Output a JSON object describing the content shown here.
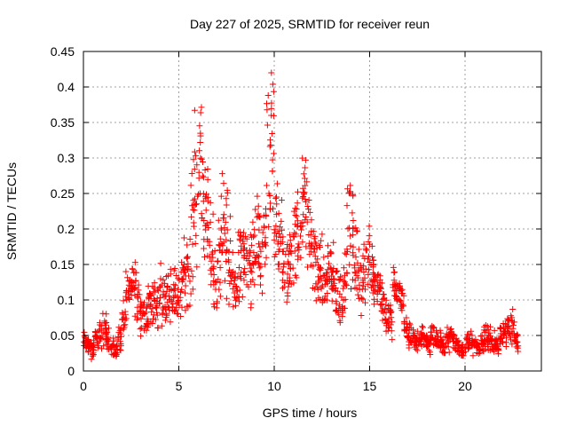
{
  "chart_data": {
    "type": "scatter",
    "title": "Day 227 of 2025, SRMTID for receiver reun",
    "xlabel": "GPS time / hours",
    "ylabel": "SRMTID / TECUs",
    "xlim": [
      0,
      24
    ],
    "ylim": [
      0,
      0.45
    ],
    "grid": true,
    "x_ticks": [
      0,
      5,
      10,
      15,
      20
    ],
    "x_tick_labels": [
      "0",
      "5",
      "10",
      "15",
      "20"
    ],
    "y_ticks": [
      0,
      0.05,
      0.1,
      0.15,
      0.2,
      0.25,
      0.3,
      0.35,
      0.4,
      0.45
    ],
    "y_tick_labels": [
      "0",
      "0.05",
      "0.1",
      "0.15",
      "0.2",
      "0.25",
      "0.3",
      "0.35",
      "0.4",
      "0.45"
    ],
    "series": [
      {
        "name": "SRMTID",
        "marker": "+",
        "color": "#ff0000",
        "x": [
          0.1,
          0.3,
          0.5,
          0.7,
          0.9,
          1.1,
          1.3,
          1.5,
          1.7,
          1.9,
          2.1,
          2.3,
          2.5,
          2.7,
          2.9,
          3.1,
          3.3,
          3.5,
          3.7,
          3.9,
          4.1,
          4.3,
          4.5,
          4.7,
          4.9,
          5.1,
          5.3,
          5.5,
          5.7,
          5.9,
          6.1,
          6.3,
          6.5,
          6.7,
          6.9,
          7.1,
          7.3,
          7.5,
          7.7,
          7.9,
          8.1,
          8.3,
          8.5,
          8.7,
          8.9,
          9.1,
          9.3,
          9.5,
          9.7,
          9.9,
          10.1,
          10.3,
          10.5,
          10.7,
          10.9,
          11.1,
          11.3,
          11.5,
          11.7,
          11.9,
          12.1,
          12.3,
          12.5,
          12.7,
          12.9,
          13.1,
          13.3,
          13.5,
          13.7,
          13.9,
          14.1,
          14.3,
          14.5,
          14.7,
          14.9,
          15.1,
          15.3,
          15.5,
          15.7,
          15.9,
          16.1,
          16.3,
          16.5,
          16.7,
          16.9,
          17.1,
          17.3,
          17.5,
          17.7,
          17.9,
          18.1,
          18.3,
          18.5,
          18.7,
          18.9,
          19.1,
          19.3,
          19.5,
          19.7,
          19.9,
          20.1,
          20.3,
          20.5,
          20.7,
          20.9,
          21.1,
          21.3,
          21.5,
          21.7,
          21.9,
          22.1,
          22.3,
          22.5,
          22.7
        ],
        "y": [
          0.04,
          0.035,
          0.03,
          0.045,
          0.05,
          0.06,
          0.045,
          0.035,
          0.03,
          0.045,
          0.07,
          0.11,
          0.12,
          0.13,
          0.1,
          0.08,
          0.07,
          0.095,
          0.1,
          0.09,
          0.11,
          0.1,
          0.12,
          0.11,
          0.1,
          0.115,
          0.14,
          0.15,
          0.2,
          0.26,
          0.3,
          0.25,
          0.2,
          0.17,
          0.12,
          0.17,
          0.2,
          0.18,
          0.14,
          0.12,
          0.14,
          0.16,
          0.14,
          0.13,
          0.17,
          0.18,
          0.15,
          0.2,
          0.27,
          0.3,
          0.22,
          0.18,
          0.15,
          0.14,
          0.16,
          0.18,
          0.2,
          0.23,
          0.22,
          0.19,
          0.16,
          0.14,
          0.13,
          0.12,
          0.15,
          0.12,
          0.11,
          0.1,
          0.13,
          0.22,
          0.18,
          0.15,
          0.12,
          0.14,
          0.16,
          0.15,
          0.13,
          0.12,
          0.1,
          0.08,
          0.07,
          0.12,
          0.11,
          0.1,
          0.06,
          0.05,
          0.045,
          0.04,
          0.05,
          0.045,
          0.04,
          0.05,
          0.045,
          0.04,
          0.035,
          0.045,
          0.05,
          0.04,
          0.035,
          0.03,
          0.04,
          0.045,
          0.035,
          0.03,
          0.04,
          0.05,
          0.045,
          0.04,
          0.035,
          0.045,
          0.05,
          0.06,
          0.07,
          0.04
        ],
        "spread": [
          0.012,
          0.01,
          0.01,
          0.012,
          0.015,
          0.02,
          0.012,
          0.01,
          0.01,
          0.015,
          0.02,
          0.025,
          0.03,
          0.035,
          0.03,
          0.025,
          0.02,
          0.025,
          0.03,
          0.03,
          0.03,
          0.03,
          0.035,
          0.03,
          0.03,
          0.035,
          0.04,
          0.045,
          0.07,
          0.09,
          0.1,
          0.07,
          0.06,
          0.05,
          0.04,
          0.05,
          0.06,
          0.06,
          0.05,
          0.04,
          0.05,
          0.05,
          0.05,
          0.045,
          0.05,
          0.055,
          0.05,
          0.07,
          0.1,
          0.11,
          0.07,
          0.05,
          0.045,
          0.04,
          0.05,
          0.05,
          0.06,
          0.06,
          0.06,
          0.05,
          0.045,
          0.04,
          0.04,
          0.035,
          0.04,
          0.04,
          0.035,
          0.035,
          0.045,
          0.07,
          0.05,
          0.045,
          0.04,
          0.04,
          0.04,
          0.035,
          0.035,
          0.03,
          0.03,
          0.025,
          0.02,
          0.02,
          0.02,
          0.02,
          0.015,
          0.015,
          0.012,
          0.012,
          0.015,
          0.012,
          0.012,
          0.015,
          0.012,
          0.012,
          0.01,
          0.012,
          0.015,
          0.012,
          0.01,
          0.01,
          0.012,
          0.012,
          0.01,
          0.01,
          0.012,
          0.015,
          0.012,
          0.012,
          0.01,
          0.012,
          0.015,
          0.02,
          0.025,
          0.012
        ]
      }
    ]
  }
}
